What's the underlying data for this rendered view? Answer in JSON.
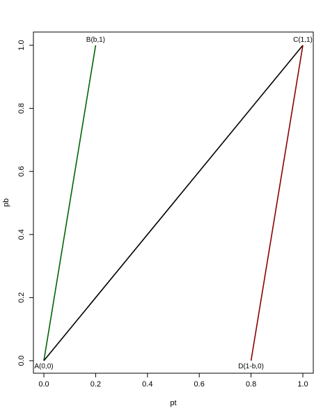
{
  "chart_data": {
    "type": "line",
    "xlabel": "pt",
    "ylabel": "pb",
    "xlim": [
      0,
      1
    ],
    "ylim": [
      0,
      1
    ],
    "x_ticks": [
      "0.0",
      "0.2",
      "0.4",
      "0.6",
      "0.8",
      "1.0"
    ],
    "y_ticks": [
      "0.0",
      "0.2",
      "0.4",
      "0.6",
      "0.8",
      "1.0"
    ],
    "grid": false,
    "legend": "none",
    "series": [
      {
        "color": "#006400",
        "points": [
          [
            0,
            0
          ],
          [
            0.2,
            1
          ]
        ]
      },
      {
        "color": "#000000",
        "points": [
          [
            0,
            0
          ],
          [
            1,
            1
          ]
        ]
      },
      {
        "color": "#8b0000",
        "points": [
          [
            0.8,
            0
          ],
          [
            1,
            1
          ]
        ]
      }
    ],
    "annotations": [
      {
        "text": "A(0,0)",
        "x": 0,
        "y": 0,
        "anchor": "below"
      },
      {
        "text": "B(b,1)",
        "x": 0.2,
        "y": 1,
        "anchor": "above"
      },
      {
        "text": "C(1,1)",
        "x": 1,
        "y": 1,
        "anchor": "above"
      },
      {
        "text": "D(1-b,0)",
        "x": 0.8,
        "y": 0,
        "anchor": "below"
      }
    ]
  }
}
